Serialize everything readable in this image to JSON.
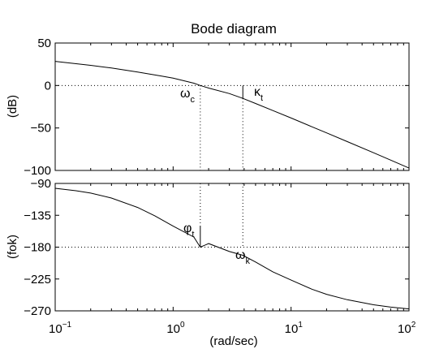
{
  "chart_data": {
    "type": "line",
    "title": "Bode diagram",
    "xlabel": "(rad/sec)",
    "xscale": "log",
    "xlim": [
      0.1,
      100
    ],
    "xticks": [
      {
        "base": "10",
        "exp": "−1"
      },
      {
        "base": "10",
        "exp": "0"
      },
      {
        "base": "10",
        "exp": "1"
      },
      {
        "base": "10",
        "exp": "2"
      }
    ],
    "panels": [
      {
        "ylabel": "(dB)",
        "ylim": [
          -100,
          50
        ],
        "yticks": [
          "50",
          "0",
          "−50",
          "−100"
        ],
        "ytick_values": [
          50,
          0,
          -50,
          -100
        ],
        "series": {
          "x": [
            0.1,
            0.2,
            0.3,
            0.5,
            0.8,
            1.0,
            1.5,
            1.7,
            2.0,
            3.0,
            3.9,
            5.0,
            7.0,
            10,
            15,
            20,
            30,
            50,
            70,
            100
          ],
          "y": [
            28.4,
            23.7,
            20.6,
            15.9,
            11.0,
            8.6,
            2.7,
            0.0,
            -3.0,
            -9.5,
            -15.2,
            -21.2,
            -29.5,
            -38.3,
            -48.6,
            -55.8,
            -66.1,
            -79.2,
            -87.9,
            -97.2
          ]
        },
        "hline": 0,
        "annotation": {
          "symbol": "κ",
          "sub": "t",
          "x": 3.9,
          "y": -15.2
        }
      },
      {
        "ylabel": "(fok)",
        "ylim": [
          -270,
          -90
        ],
        "yticks": [
          "−90",
          "−135",
          "−180",
          "−225",
          "−270"
        ],
        "ytick_values": [
          -90,
          -135,
          -180,
          -225,
          -270
        ],
        "series": {
          "x": [
            0.1,
            0.15,
            0.2,
            0.3,
            0.5,
            0.7,
            1.0,
            1.5,
            1.7,
            2.0,
            3.0,
            3.9,
            5.0,
            7.0,
            10,
            15,
            20,
            30,
            50,
            70,
            100
          ],
          "y": [
            -96.9,
            -100.3,
            -103.7,
            -110.6,
            -123.9,
            -135.8,
            -150.3,
            -165.8,
            -180.0,
            -175.0,
            -186.2,
            -191.5,
            -201.0,
            -214.9,
            -226.5,
            -239.4,
            -246.6,
            -254.3,
            -261.4,
            -264.7,
            -267.2
          ]
        },
        "hline": -180,
        "annotation": {
          "symbol": "φ",
          "sub": "t",
          "x": 1.7,
          "y": -150
        }
      }
    ],
    "markers": [
      {
        "symbol": "ω",
        "sub": "c",
        "x": 1.7
      },
      {
        "symbol": "ω",
        "sub": "k",
        "x": 3.9
      }
    ],
    "grid": false,
    "legend": "none"
  }
}
